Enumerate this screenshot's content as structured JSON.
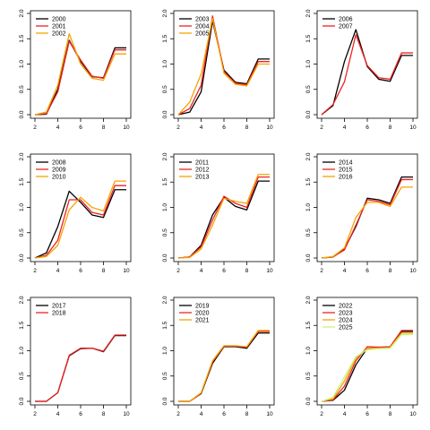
{
  "colors": {
    "black": "#000000",
    "red": "#ee2222",
    "orange": "#f5a300",
    "lightgreen": "#c8f57a"
  },
  "chart_data": [
    {
      "type": "line",
      "x": [
        2,
        3,
        4,
        5,
        6,
        7,
        8,
        9,
        10
      ],
      "xlim": [
        2,
        10
      ],
      "ylim": [
        0,
        2
      ],
      "xticks": [
        "2",
        "4",
        "6",
        "8",
        "10"
      ],
      "yticks": [
        "0.0",
        "0.5",
        "1.0",
        "1.5",
        "2.0"
      ],
      "legend_position": "top-left",
      "series": [
        {
          "name": "2000",
          "color": "#000000",
          "values": [
            0.0,
            0.01,
            0.5,
            1.47,
            1.05,
            0.75,
            0.73,
            1.32,
            1.32
          ]
        },
        {
          "name": "2001",
          "color": "#ee2222",
          "values": [
            0.0,
            0.02,
            0.45,
            1.45,
            1.08,
            0.76,
            0.72,
            1.28,
            1.28
          ]
        },
        {
          "name": "2002",
          "color": "#f5a300",
          "values": [
            0.0,
            0.05,
            0.58,
            1.6,
            1.0,
            0.72,
            0.68,
            1.2,
            1.2
          ]
        }
      ]
    },
    {
      "type": "line",
      "x": [
        2,
        3,
        4,
        5,
        6,
        7,
        8,
        9,
        10
      ],
      "xlim": [
        2,
        10
      ],
      "ylim": [
        0,
        2
      ],
      "xticks": [
        "2",
        "4",
        "6",
        "8",
        "10"
      ],
      "yticks": [
        "0.0",
        "0.5",
        "1.0",
        "1.5",
        "2.0"
      ],
      "legend_position": "top-left",
      "series": [
        {
          "name": "2003",
          "color": "#000000",
          "values": [
            0.0,
            0.05,
            0.45,
            1.85,
            0.88,
            0.64,
            0.61,
            1.1,
            1.1
          ]
        },
        {
          "name": "2004",
          "color": "#ee2222",
          "values": [
            0.0,
            0.12,
            0.58,
            1.95,
            0.85,
            0.62,
            0.59,
            1.05,
            1.05
          ]
        },
        {
          "name": "2005",
          "color": "#f5a300",
          "values": [
            0.0,
            0.25,
            0.8,
            1.9,
            0.82,
            0.6,
            0.57,
            1.0,
            1.0
          ]
        }
      ]
    },
    {
      "type": "line",
      "x": [
        2,
        3,
        4,
        5,
        6,
        7,
        8,
        9,
        10
      ],
      "xlim": [
        2,
        10
      ],
      "ylim": [
        0,
        2
      ],
      "xticks": [
        "2",
        "4",
        "6",
        "8",
        "10"
      ],
      "yticks": [
        "0.0",
        "0.5",
        "1.0",
        "1.5",
        "2.0"
      ],
      "legend_position": "top-left",
      "series": [
        {
          "name": "2006",
          "color": "#000000",
          "values": [
            0.0,
            0.18,
            1.05,
            1.68,
            0.95,
            0.7,
            0.66,
            1.17,
            1.17
          ]
        },
        {
          "name": "2007",
          "color": "#ee2222",
          "values": [
            0.0,
            0.2,
            0.65,
            1.58,
            0.97,
            0.73,
            0.7,
            1.22,
            1.22
          ]
        }
      ]
    },
    {
      "type": "line",
      "x": [
        2,
        3,
        4,
        5,
        6,
        7,
        8,
        9,
        10
      ],
      "xlim": [
        2,
        10
      ],
      "ylim": [
        0,
        2
      ],
      "xticks": [
        "2",
        "4",
        "6",
        "8",
        "10"
      ],
      "yticks": [
        "0.0",
        "0.5",
        "1.0",
        "1.5",
        "2.0"
      ],
      "legend_position": "top-left",
      "series": [
        {
          "name": "2008",
          "color": "#000000",
          "values": [
            0.0,
            0.1,
            0.62,
            1.32,
            1.1,
            0.85,
            0.8,
            1.35,
            1.35
          ]
        },
        {
          "name": "2009",
          "color": "#ee2222",
          "values": [
            0.0,
            0.05,
            0.35,
            1.15,
            1.15,
            0.9,
            0.85,
            1.43,
            1.43
          ]
        },
        {
          "name": "2010",
          "color": "#f5a300",
          "values": [
            0.0,
            0.03,
            0.25,
            0.95,
            1.2,
            1.0,
            0.93,
            1.52,
            1.52
          ]
        }
      ]
    },
    {
      "type": "line",
      "x": [
        2,
        3,
        4,
        5,
        6,
        7,
        8,
        9,
        10
      ],
      "xlim": [
        2,
        10
      ],
      "ylim": [
        0,
        2
      ],
      "xticks": [
        "2",
        "4",
        "6",
        "8",
        "10"
      ],
      "yticks": [
        "0.0",
        "0.5",
        "1.0",
        "1.5",
        "2.0"
      ],
      "legend_position": "top-left",
      "series": [
        {
          "name": "2011",
          "color": "#000000",
          "values": [
            0.0,
            0.02,
            0.25,
            0.85,
            1.2,
            1.02,
            0.95,
            1.52,
            1.52
          ]
        },
        {
          "name": "2012",
          "color": "#ee2222",
          "values": [
            0.0,
            0.02,
            0.22,
            0.75,
            1.22,
            1.08,
            1.0,
            1.6,
            1.6
          ]
        },
        {
          "name": "2013",
          "color": "#f5a300",
          "values": [
            0.0,
            0.01,
            0.18,
            0.65,
            1.18,
            1.12,
            1.08,
            1.65,
            1.65
          ]
        }
      ]
    },
    {
      "type": "line",
      "x": [
        2,
        3,
        4,
        5,
        6,
        7,
        8,
        9,
        10
      ],
      "xlim": [
        2,
        10
      ],
      "ylim": [
        0,
        2
      ],
      "xticks": [
        "2",
        "4",
        "6",
        "8",
        "10"
      ],
      "yticks": [
        "0.0",
        "0.5",
        "1.0",
        "1.5",
        "2.0"
      ],
      "legend_position": "top-left",
      "series": [
        {
          "name": "2014",
          "color": "#000000",
          "values": [
            0.0,
            0.02,
            0.18,
            0.62,
            1.18,
            1.15,
            1.08,
            1.6,
            1.6
          ]
        },
        {
          "name": "2015",
          "color": "#ee2222",
          "values": [
            0.0,
            0.02,
            0.16,
            0.65,
            1.15,
            1.12,
            1.05,
            1.55,
            1.55
          ]
        },
        {
          "name": "2016",
          "color": "#f5a300",
          "values": [
            0.0,
            0.03,
            0.2,
            0.8,
            1.1,
            1.1,
            1.02,
            1.4,
            1.4
          ]
        }
      ]
    },
    {
      "type": "line",
      "x": [
        2,
        3,
        4,
        5,
        6,
        7,
        8,
        9,
        10
      ],
      "xlim": [
        2,
        10
      ],
      "ylim": [
        0,
        2
      ],
      "xticks": [
        "2",
        "4",
        "6",
        "8",
        "10"
      ],
      "yticks": [
        "0.0",
        "0.5",
        "1.0",
        "1.5",
        "2.0"
      ],
      "legend_position": "top-left",
      "series": [
        {
          "name": "2017",
          "color": "#000000",
          "values": [
            0.0,
            0.0,
            0.17,
            0.9,
            1.04,
            1.05,
            0.98,
            1.3,
            1.3
          ]
        },
        {
          "name": "2018",
          "color": "#ee2222",
          "values": [
            0.0,
            0.0,
            0.17,
            0.91,
            1.05,
            1.05,
            0.99,
            1.31,
            1.31
          ]
        }
      ]
    },
    {
      "type": "line",
      "x": [
        2,
        3,
        4,
        5,
        6,
        7,
        8,
        9,
        10
      ],
      "xlim": [
        2,
        10
      ],
      "ylim": [
        0,
        2
      ],
      "xticks": [
        "2",
        "4",
        "6",
        "8",
        "10"
      ],
      "yticks": [
        "0.0",
        "0.5",
        "1.0",
        "1.5",
        "2.0"
      ],
      "legend_position": "top-left",
      "series": [
        {
          "name": "2019",
          "color": "#000000",
          "values": [
            0.0,
            0.0,
            0.15,
            0.75,
            1.08,
            1.08,
            1.05,
            1.35,
            1.35
          ]
        },
        {
          "name": "2020",
          "color": "#ee2222",
          "values": [
            0.0,
            0.0,
            0.16,
            0.78,
            1.09,
            1.09,
            1.07,
            1.38,
            1.38
          ]
        },
        {
          "name": "2021",
          "color": "#f5a300",
          "values": [
            0.0,
            0.0,
            0.17,
            0.8,
            1.1,
            1.1,
            1.08,
            1.4,
            1.4
          ]
        }
      ]
    },
    {
      "type": "line",
      "x": [
        2,
        3,
        4,
        5,
        6,
        7,
        8,
        9,
        10
      ],
      "xlim": [
        2,
        10
      ],
      "ylim": [
        0,
        2
      ],
      "xticks": [
        "2",
        "4",
        "6",
        "8",
        "10"
      ],
      "yticks": [
        "0.0",
        "0.5",
        "1.0",
        "1.5",
        "2.0"
      ],
      "legend_position": "top-left",
      "series": [
        {
          "name": "2022",
          "color": "#000000",
          "values": [
            0.0,
            0.02,
            0.22,
            0.72,
            1.05,
            1.06,
            1.07,
            1.38,
            1.38
          ]
        },
        {
          "name": "2023",
          "color": "#ee2222",
          "values": [
            0.0,
            0.03,
            0.3,
            0.8,
            1.08,
            1.07,
            1.08,
            1.4,
            1.4
          ]
        },
        {
          "name": "2024",
          "color": "#f5a300",
          "values": [
            0.0,
            0.05,
            0.4,
            0.85,
            1.05,
            1.05,
            1.06,
            1.35,
            1.35
          ]
        },
        {
          "name": "2025",
          "color": "#c8f57a",
          "values": [
            0.0,
            0.08,
            0.48,
            0.88,
            1.02,
            1.04,
            1.05,
            1.32,
            1.32
          ]
        }
      ]
    }
  ]
}
